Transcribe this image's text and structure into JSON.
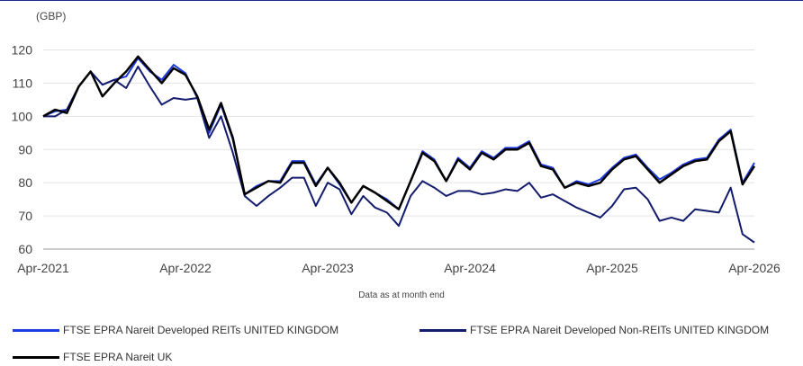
{
  "chart_data": {
    "type": "line",
    "unit_label": "(GBP)",
    "xlabel": "Data as at month end",
    "x_ticks": [
      "Apr-2021",
      "Apr-2022",
      "Apr-2023",
      "Apr-2024",
      "Apr-2025",
      "Apr-2026"
    ],
    "y_ticks": [
      60,
      70,
      80,
      90,
      100,
      110,
      120
    ],
    "ylim": [
      60,
      120
    ],
    "x_range": [
      "Apr-2021",
      "Apr-2026"
    ],
    "grid": "horizontal",
    "legend_position": "bottom",
    "series": [
      {
        "name": "FTSE EPRA Nareit Developed REITs UNITED KINGDOM",
        "color": "#1f3ce0",
        "values": [
          100,
          101.5,
          102,
          109,
          113.5,
          109.5,
          111,
          112,
          117.5,
          113.5,
          111,
          115.5,
          113,
          105.5,
          95,
          103.5,
          93,
          76.5,
          79,
          80.5,
          80.5,
          86.5,
          86.5,
          79.5,
          84.5,
          79.5,
          74,
          79,
          77,
          75,
          72,
          80.5,
          89.5,
          87,
          80.5,
          87.5,
          84.5,
          89.5,
          87.5,
          90.5,
          90.5,
          92.5,
          85.5,
          84.5,
          78.5,
          80.5,
          79.5,
          81,
          84.5,
          87.5,
          88.5,
          84.5,
          81,
          83,
          85.5,
          87,
          87.5,
          93,
          96,
          80,
          86
        ]
      },
      {
        "name": "FTSE EPRA Nareit Developed Non-REITs UNITED KINGDOM",
        "color": "#141c6e",
        "values": [
          100,
          100,
          102,
          109,
          113.5,
          109.5,
          111,
          108.5,
          115,
          109,
          103.5,
          105.5,
          105,
          105.5,
          93.5,
          100,
          89,
          76,
          73,
          76,
          78.5,
          81.5,
          81.5,
          73,
          80,
          78,
          70.5,
          76,
          72.5,
          71,
          67,
          76,
          80.5,
          78.5,
          76,
          77.5,
          77.5,
          76.5,
          77,
          78,
          77.5,
          80,
          75.5,
          76.5,
          74.5,
          72.5,
          71,
          69.5,
          73,
          78,
          78.5,
          75,
          68.5,
          69.5,
          68.5,
          72,
          71.5,
          71,
          78.5,
          64.5,
          62
        ]
      },
      {
        "name": "FTSE EPRA Nareit UK",
        "color": "#000000",
        "values": [
          100,
          102,
          101,
          109,
          113.5,
          106,
          110,
          113.5,
          118,
          114,
          110,
          114.5,
          112.5,
          106,
          96,
          104,
          93.5,
          76.5,
          78.5,
          80.5,
          80,
          86,
          86,
          79,
          84.5,
          80,
          74,
          79,
          77,
          74.5,
          72,
          80.5,
          89,
          86.5,
          80.5,
          87,
          84,
          89,
          87,
          90,
          90,
          92,
          85,
          84,
          78.5,
          80,
          79,
          80,
          84,
          87,
          88,
          84,
          80,
          82.5,
          85,
          86.5,
          87,
          92.5,
          95.5,
          79.5,
          85
        ]
      }
    ]
  }
}
